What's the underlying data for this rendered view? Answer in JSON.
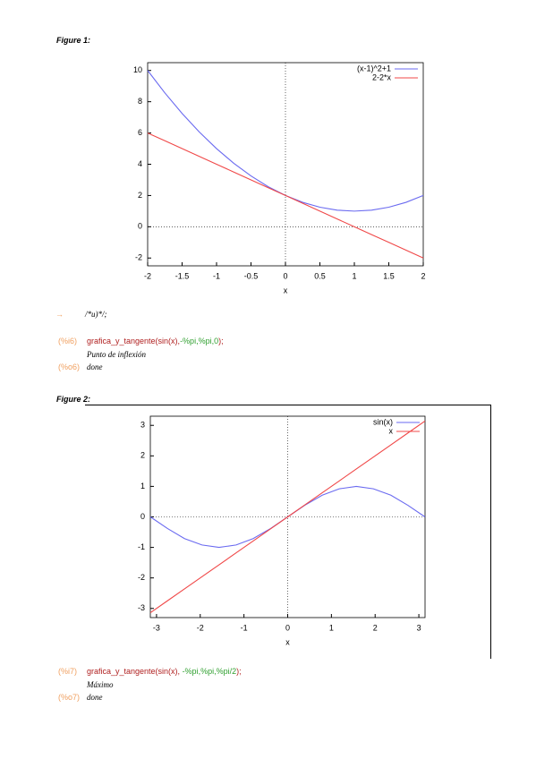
{
  "document": {
    "figure1_label": "Figure 1:",
    "line_a": {
      "prompt": "→",
      "code": "/*u)*/;"
    },
    "cell6": {
      "in_label": "(%i6)",
      "code": [
        "grafica_y_tangente(sin(x),",
        "-%pi,%pi,0",
        ");"
      ],
      "message": "Punto de inflexión",
      "out_label": "(%o6)",
      "out": "done"
    },
    "figure2_label": "Figure 2:",
    "cell7": {
      "in_label": "(%i7)",
      "code": [
        "grafica_y_tangente(sin(x), ",
        "-%pi,%pi,%pi/2",
        ");"
      ],
      "message": "Máximo",
      "out_label": "(%o7)",
      "out": "done"
    }
  },
  "chart_data": [
    {
      "type": "line",
      "x_label": "x",
      "x": [
        -2,
        -1.75,
        -1.5,
        -1.25,
        -1,
        -0.75,
        -0.5,
        -0.25,
        0,
        0.25,
        0.5,
        0.75,
        1,
        1.25,
        1.5,
        1.75,
        2
      ],
      "series": [
        {
          "name": "(x-1)^2+1",
          "color": "#6a6af0",
          "values": [
            10,
            8.5625,
            7.25,
            6.0625,
            5,
            4.0625,
            3.25,
            2.5625,
            2,
            1.5625,
            1.25,
            1.0625,
            1,
            1.0625,
            1.25,
            1.5625,
            2
          ]
        },
        {
          "name": "2-2*x",
          "color": "#f04848",
          "values": [
            6,
            5.5,
            5,
            4.5,
            4,
            3.5,
            3,
            2.5,
            2,
            1.5,
            1,
            0.5,
            0,
            -0.5,
            -1,
            -1.5,
            -2
          ]
        }
      ],
      "xlim": [
        -2,
        2
      ],
      "ylim": [
        -2.5,
        10.5
      ],
      "xticks": [
        -2,
        -1.5,
        -1,
        -0.5,
        0,
        0.5,
        1,
        1.5,
        2
      ],
      "yticks": [
        -2,
        0,
        2,
        4,
        6,
        8,
        10
      ],
      "zeroaxis": true,
      "legend": "top-right"
    },
    {
      "type": "line",
      "x_label": "x",
      "x": [
        -3.14,
        -2.75,
        -2.36,
        -1.96,
        -1.57,
        -1.18,
        -0.79,
        -0.39,
        0,
        0.39,
        0.79,
        1.18,
        1.57,
        1.96,
        2.36,
        2.75,
        3.14
      ],
      "series": [
        {
          "name": "sin(x)",
          "color": "#6a6af0",
          "values": [
            0,
            -0.38,
            -0.71,
            -0.92,
            -1,
            -0.92,
            -0.71,
            -0.38,
            0,
            0.38,
            0.71,
            0.92,
            1,
            0.92,
            0.71,
            0.38,
            0
          ]
        },
        {
          "name": "x",
          "color": "#f04848",
          "values": [
            -3.14,
            -2.75,
            -2.36,
            -1.96,
            -1.57,
            -1.18,
            -0.79,
            -0.39,
            0,
            0.39,
            0.79,
            1.18,
            1.57,
            1.96,
            2.36,
            2.75,
            3.14
          ]
        }
      ],
      "xlim": [
        -3.1416,
        3.1416
      ],
      "ylim": [
        -3.3,
        3.3
      ],
      "xticks": [
        -3,
        -2,
        -1,
        0,
        1,
        2,
        3
      ],
      "yticks": [
        -3,
        -2,
        -1,
        0,
        1,
        2,
        3
      ],
      "zeroaxis": true,
      "legend": "top-right"
    }
  ]
}
